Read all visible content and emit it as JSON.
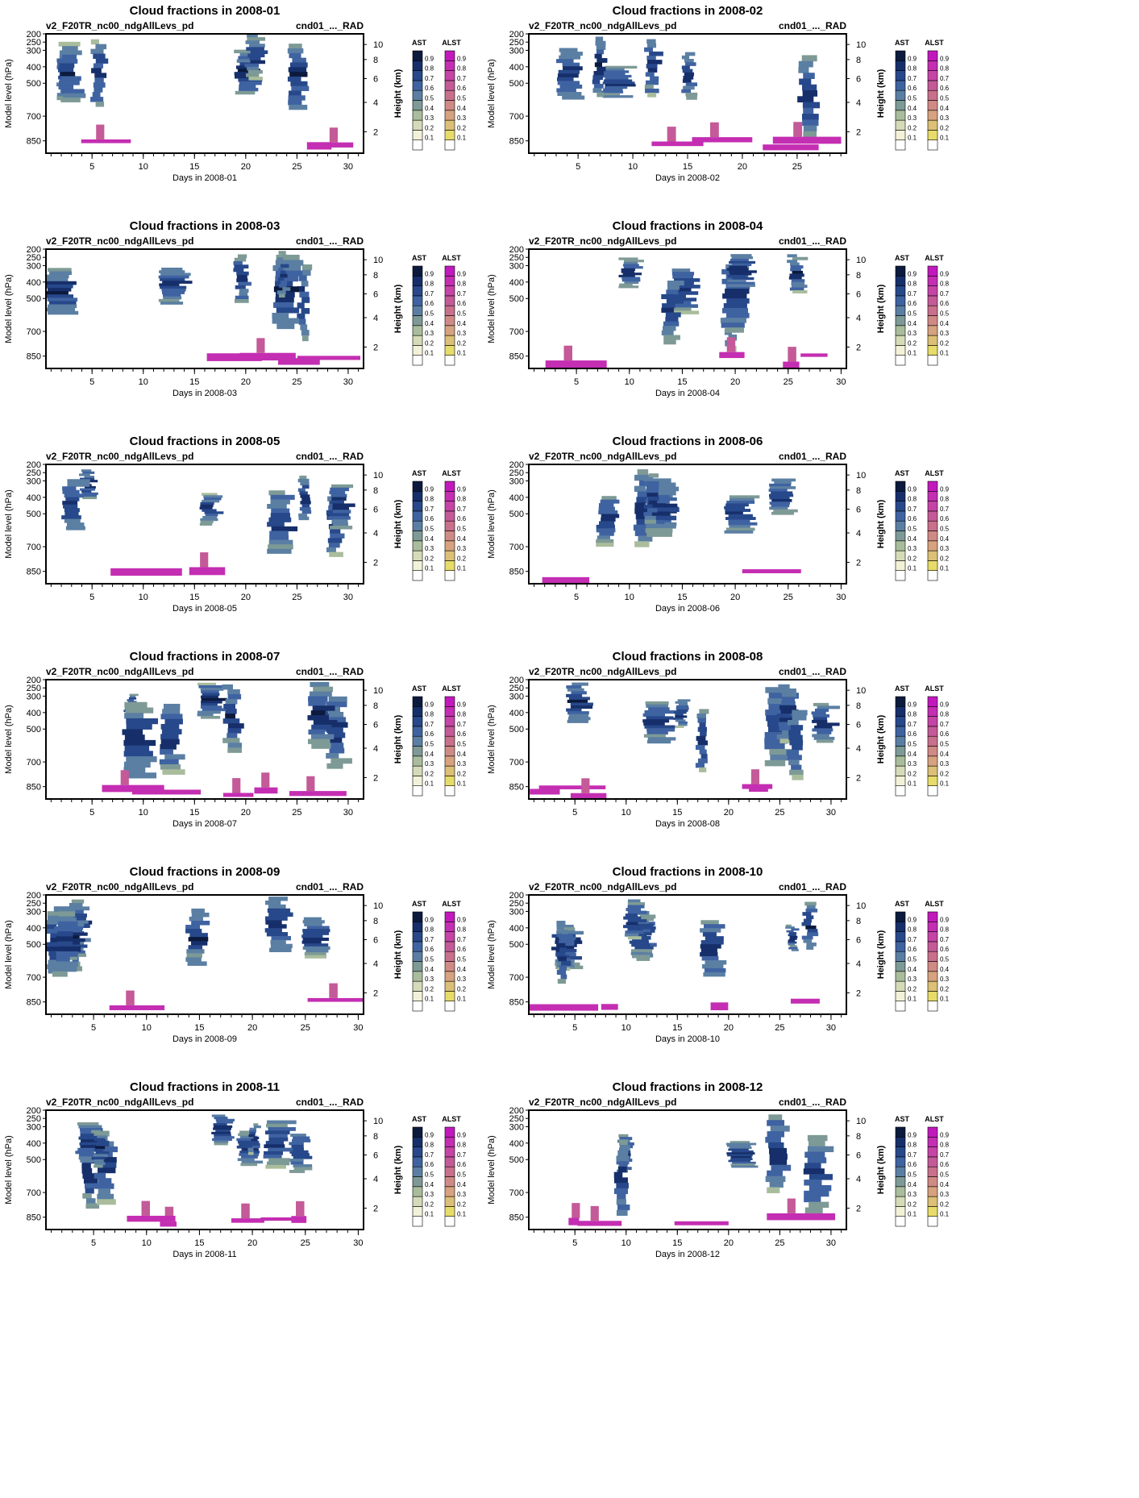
{
  "panels": [
    {
      "title": "Cloud fractions in 2008-01",
      "case": "v2_F20TR_nc00_ndgAllLevs_pd",
      "var": "cnd01_..._RAD",
      "xlabel": "Days in 2008-01",
      "days": 31
    },
    {
      "title": "Cloud fractions in 2008-02",
      "case": "v2_F20TR_nc00_ndgAllLevs_pd",
      "var": "cnd01_..._RAD",
      "xlabel": "Days in 2008-02",
      "days": 29
    },
    {
      "title": "Cloud fractions in 2008-03",
      "case": "v2_F20TR_nc00_ndgAllLevs_pd",
      "var": "cnd01_..._RAD",
      "xlabel": "Days in 2008-03",
      "days": 31
    },
    {
      "title": "Cloud fractions in 2008-04",
      "case": "v2_F20TR_nc00_ndgAllLevs_pd",
      "var": "cnd01_..._RAD",
      "xlabel": "Days in 2008-04",
      "days": 30
    },
    {
      "title": "Cloud fractions in 2008-05",
      "case": "v2_F20TR_nc00_ndgAllLevs_pd",
      "var": "cnd01_..._RAD",
      "xlabel": "Days in 2008-05",
      "days": 31
    },
    {
      "title": "Cloud fractions in 2008-06",
      "case": "v2_F20TR_nc00_ndgAllLevs_pd",
      "var": "cnd01_..._RAD",
      "xlabel": "Days in 2008-06",
      "days": 30
    },
    {
      "title": "Cloud fractions in 2008-07",
      "case": "v2_F20TR_nc00_ndgAllLevs_pd",
      "var": "cnd01_..._RAD",
      "xlabel": "Days in 2008-07",
      "days": 31
    },
    {
      "title": "Cloud fractions in 2008-08",
      "case": "v2_F20TR_nc00_ndgAllLevs_pd",
      "var": "cnd01_..._RAD",
      "xlabel": "Days in 2008-08",
      "days": 31
    },
    {
      "title": "Cloud fractions in 2008-09",
      "case": "v2_F20TR_nc00_ndgAllLevs_pd",
      "var": "cnd01_..._RAD",
      "xlabel": "Days in 2008-09",
      "days": 30
    },
    {
      "title": "Cloud fractions in 2008-10",
      "case": "v2_F20TR_nc00_ndgAllLevs_pd",
      "var": "cnd01_..._RAD",
      "xlabel": "Days in 2008-10",
      "days": 31
    },
    {
      "title": "Cloud fractions in 2008-11",
      "case": "v2_F20TR_nc00_ndgAllLevs_pd",
      "var": "cnd01_..._RAD",
      "xlabel": "Days in 2008-11",
      "days": 30
    },
    {
      "title": "Cloud fractions in 2008-12",
      "case": "v2_F20TR_nc00_ndgAllLevs_pd",
      "var": "cnd01_..._RAD",
      "xlabel": "Days in 2008-12",
      "days": 31
    }
  ],
  "chart_data": {
    "type": "heatmap",
    "ylabel_left": "Model level (hPa)",
    "ylabel_right": "Height (km)",
    "y_ticks_hPa": [
      200,
      250,
      300,
      400,
      500,
      700,
      850
    ],
    "y_ticks_km": [
      2,
      4,
      6,
      8,
      10
    ],
    "x_ticks": [
      5,
      10,
      15,
      20,
      25,
      30
    ],
    "colorbars": [
      {
        "name": "AST",
        "levels": [
          0.1,
          0.2,
          0.3,
          0.4,
          0.5,
          0.6,
          0.7,
          0.8,
          0.9
        ],
        "colors": [
          "#ffffff",
          "#f3f2d9",
          "#d5dbb8",
          "#a9bd9c",
          "#7e9a96",
          "#5b7fa3",
          "#3f63a1",
          "#27488a",
          "#162f6a",
          "#0b1a3d"
        ]
      },
      {
        "name": "ALST",
        "levels": [
          0.1,
          0.2,
          0.3,
          0.4,
          0.5,
          0.6,
          0.7,
          0.8,
          0.9
        ],
        "colors": [
          "#ffffff",
          "#e7dc6a",
          "#dcc077",
          "#d7a27f",
          "#d08a85",
          "#c8708c",
          "#c45a98",
          "#c544a6",
          "#c42eb2",
          "#c219bd"
        ]
      }
    ]
  }
}
